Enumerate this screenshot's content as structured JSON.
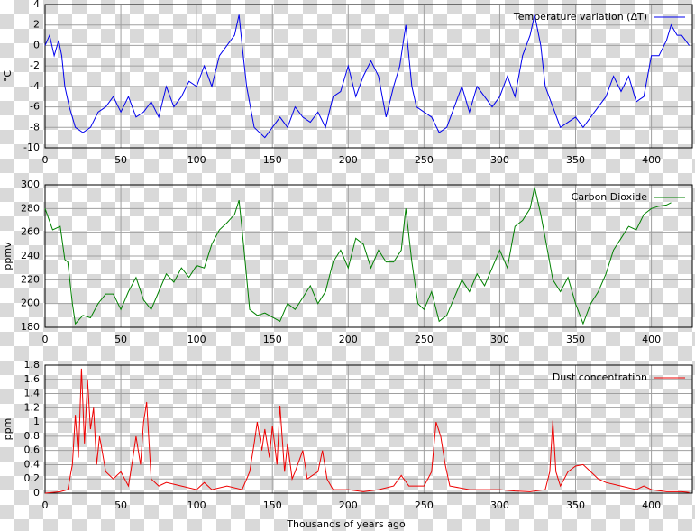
{
  "chart_data": [
    {
      "type": "line",
      "ylabel": "°C",
      "legend": "upper right",
      "grid": true,
      "xlim": [
        0,
        427
      ],
      "xticks": [
        0,
        50,
        100,
        150,
        200,
        250,
        300,
        350,
        400
      ],
      "ylim": [
        -10,
        4
      ],
      "yticks": [
        -10,
        -8,
        -6,
        -4,
        -2,
        0,
        2,
        4
      ],
      "x": [
        0,
        3,
        6,
        9,
        11,
        13,
        16,
        20,
        25,
        30,
        35,
        40,
        45,
        50,
        55,
        60,
        65,
        70,
        75,
        80,
        85,
        90,
        95,
        100,
        105,
        110,
        115,
        120,
        125,
        128,
        130,
        133,
        138,
        145,
        150,
        155,
        160,
        165,
        170,
        175,
        180,
        185,
        190,
        195,
        200,
        205,
        210,
        215,
        220,
        225,
        230,
        234,
        238,
        242,
        245,
        250,
        255,
        260,
        265,
        270,
        275,
        280,
        285,
        290,
        295,
        300,
        305,
        310,
        315,
        320,
        323,
        327,
        330,
        335,
        340,
        345,
        350,
        355,
        360,
        365,
        370,
        375,
        380,
        385,
        390,
        395,
        400,
        405,
        410,
        413,
        417,
        420,
        425
      ],
      "series": [
        {
          "name": "Temperature variation (ΔT)",
          "color": "#0000ee",
          "values": [
            0,
            1,
            -1,
            0.5,
            -1,
            -4,
            -6,
            -8,
            -8.5,
            -8,
            -6.5,
            -6,
            -5,
            -6.5,
            -5,
            -7,
            -6.5,
            -5.5,
            -7,
            -4,
            -6,
            -5,
            -3.5,
            -4,
            -2,
            -4,
            -1,
            0,
            1,
            3,
            0,
            -4,
            -8,
            -9,
            -8,
            -7,
            -8,
            -6,
            -7,
            -7.5,
            -6.5,
            -8,
            -5,
            -4.5,
            -2,
            -5,
            -3,
            -1.5,
            -3,
            -7,
            -4,
            -2,
            2,
            -4,
            -6,
            -6.5,
            -7,
            -8.5,
            -8,
            -6,
            -4,
            -6.5,
            -4,
            -5,
            -6,
            -5,
            -3,
            -5,
            -1,
            1,
            3,
            0,
            -4,
            -6,
            -8,
            -7.5,
            -7,
            -8,
            -7,
            -6,
            -5,
            -3,
            -4.5,
            -3,
            -5.5,
            -5,
            -1,
            -1,
            0.5,
            2,
            1,
            1,
            0
          ]
        }
      ]
    },
    {
      "type": "line",
      "ylabel": "ppmv",
      "legend": "upper right",
      "grid": true,
      "xlim": [
        0,
        427
      ],
      "xticks": [
        0,
        50,
        100,
        150,
        200,
        250,
        300,
        350,
        400
      ],
      "ylim": [
        180,
        300
      ],
      "yticks": [
        180,
        200,
        220,
        240,
        260,
        280,
        300
      ],
      "x": [
        0,
        5,
        10,
        13,
        15,
        18,
        20,
        25,
        30,
        35,
        40,
        45,
        50,
        55,
        60,
        65,
        70,
        75,
        80,
        85,
        90,
        95,
        100,
        105,
        110,
        115,
        120,
        125,
        128,
        130,
        135,
        140,
        145,
        155,
        160,
        165,
        170,
        175,
        180,
        185,
        190,
        195,
        200,
        205,
        210,
        215,
        220,
        225,
        230,
        235,
        238,
        242,
        246,
        250,
        255,
        260,
        265,
        270,
        275,
        280,
        285,
        290,
        295,
        300,
        305,
        310,
        315,
        320,
        323,
        327,
        330,
        335,
        340,
        345,
        350,
        355,
        360,
        365,
        370,
        375,
        380,
        385,
        390,
        395,
        400,
        405,
        410,
        413
      ],
      "series": [
        {
          "name": "Carbon Dioxide",
          "color": "#008000",
          "values": [
            280,
            262,
            265,
            237,
            235,
            200,
            183,
            190,
            188,
            200,
            208,
            208,
            195,
            210,
            222,
            203,
            195,
            210,
            225,
            218,
            230,
            222,
            232,
            230,
            250,
            262,
            268,
            275,
            287,
            262,
            195,
            190,
            192,
            185,
            200,
            195,
            205,
            215,
            200,
            210,
            235,
            245,
            230,
            255,
            250,
            230,
            245,
            235,
            235,
            245,
            280,
            235,
            200,
            195,
            210,
            185,
            190,
            205,
            220,
            210,
            225,
            215,
            230,
            245,
            230,
            265,
            270,
            280,
            298,
            275,
            255,
            220,
            210,
            222,
            200,
            183,
            200,
            210,
            225,
            245,
            255,
            265,
            262,
            275,
            280,
            282,
            283,
            285
          ]
        }
      ]
    },
    {
      "type": "line",
      "ylabel": "ppm",
      "xlabel": "Thousands of years ago",
      "legend": "upper right",
      "grid": true,
      "xlim": [
        0,
        427
      ],
      "xticks": [
        0,
        50,
        100,
        150,
        200,
        250,
        300,
        350,
        400
      ],
      "ylim": [
        0,
        1.8
      ],
      "yticks": [
        0,
        0.2,
        0.4,
        0.6,
        0.8,
        1,
        1.2,
        1.4,
        1.6,
        1.8
      ],
      "x": [
        0,
        10,
        15,
        18,
        20,
        22,
        24,
        26,
        28,
        30,
        32,
        34,
        36,
        40,
        45,
        50,
        55,
        58,
        60,
        63,
        65,
        67,
        70,
        75,
        80,
        90,
        100,
        105,
        110,
        120,
        130,
        135,
        138,
        140,
        143,
        145,
        148,
        150,
        153,
        155,
        158,
        160,
        163,
        165,
        170,
        173,
        180,
        183,
        186,
        190,
        200,
        210,
        220,
        230,
        235,
        240,
        250,
        255,
        258,
        261,
        264,
        267,
        280,
        290,
        300,
        310,
        320,
        330,
        333,
        335,
        337,
        340,
        345,
        350,
        355,
        360,
        365,
        370,
        380,
        390,
        395,
        400,
        410,
        420,
        425
      ],
      "series": [
        {
          "name": "Dust concentration",
          "color": "#ee0000",
          "values": [
            0,
            0.02,
            0.05,
            0.4,
            1.1,
            0.5,
            1.75,
            0.7,
            1.6,
            0.9,
            1.2,
            0.4,
            0.8,
            0.3,
            0.2,
            0.3,
            0.1,
            0.5,
            0.8,
            0.4,
            1,
            1.28,
            0.2,
            0.1,
            0.15,
            0.1,
            0.05,
            0.15,
            0.05,
            0.1,
            0.05,
            0.3,
            0.7,
            1,
            0.6,
            0.9,
            0.5,
            0.95,
            0.4,
            1.23,
            0.3,
            0.7,
            0.2,
            0.3,
            0.6,
            0.2,
            0.3,
            0.6,
            0.2,
            0.05,
            0.05,
            0.02,
            0.05,
            0.1,
            0.25,
            0.1,
            0.1,
            0.3,
            1,
            0.8,
            0.4,
            0.1,
            0.05,
            0.05,
            0.05,
            0.03,
            0.02,
            0.05,
            0.3,
            1.02,
            0.3,
            0.1,
            0.3,
            0.38,
            0.4,
            0.3,
            0.2,
            0.15,
            0.1,
            0.05,
            0.1,
            0.05,
            0.02,
            0.02,
            0.01
          ]
        }
      ]
    }
  ]
}
